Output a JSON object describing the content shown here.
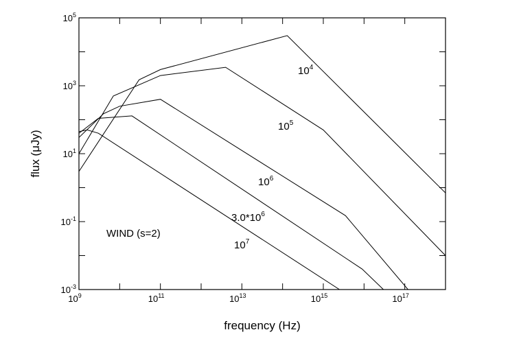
{
  "chart_data": {
    "type": "line",
    "xscale": "log",
    "yscale": "log",
    "xlabel": "frequency (Hz)",
    "ylabel": "flux (μJy)",
    "xlim": [
      1000000000.0,
      1e+18
    ],
    "ylim": [
      0.001,
      100000
    ],
    "grid": false,
    "x_ticks": [
      {
        "base": "10",
        "exp": "9",
        "value": 1000000000.0
      },
      {
        "base": "10",
        "exp": "11",
        "value": 100000000000.0
      },
      {
        "base": "10",
        "exp": "13",
        "value": 10000000000000.0
      },
      {
        "base": "10",
        "exp": "15",
        "value": 1000000000000000.0
      },
      {
        "base": "10",
        "exp": "17",
        "value": 1e+17
      }
    ],
    "y_ticks": [
      {
        "base": "10",
        "exp": "-3",
        "value": 0.001
      },
      {
        "base": "10",
        "exp": "-1",
        "value": 0.1
      },
      {
        "base": "10",
        "exp": "1",
        "value": 10
      },
      {
        "base": "10",
        "exp": "3",
        "value": 1000
      },
      {
        "base": "10",
        "exp": "5",
        "value": 100000
      }
    ],
    "annotations": [
      {
        "text": "WIND (s=2)"
      }
    ],
    "series": [
      {
        "label_base": "10",
        "label_exp": "4",
        "points": [
          [
            1000000000.0,
            3.0
          ],
          [
            30000000000.0,
            1500
          ],
          [
            100000000000.0,
            3000
          ],
          [
            130000000000000.0,
            30000
          ],
          [
            1e+18,
            0.7
          ]
        ]
      },
      {
        "label_base": "10",
        "label_exp": "5",
        "points": [
          [
            1000000000.0,
            10
          ],
          [
            7000000000.0,
            500
          ],
          [
            100000000000.0,
            2000
          ],
          [
            4000000000000.0,
            3500
          ],
          [
            1000000000000000.0,
            50
          ],
          [
            1e+18,
            0.01
          ]
        ]
      },
      {
        "label_base": "10",
        "label_exp": "6",
        "points": [
          [
            1000000000.0,
            30
          ],
          [
            4000000000.0,
            150
          ],
          [
            10000000000.0,
            250
          ],
          [
            100000000000.0,
            400
          ],
          [
            3500000000000000.0,
            0.15
          ],
          [
            1.2e+17,
            0.001
          ]
        ]
      },
      {
        "label_base": "3.0*10",
        "label_exp": "6",
        "points": [
          [
            1000000000.0,
            40
          ],
          [
            3000000000.0,
            110
          ],
          [
            20000000000.0,
            130
          ],
          [
            9000000000000000.0,
            0.004
          ],
          [
            3e+16,
            0.001
          ]
        ]
      },
      {
        "label_base": "10",
        "label_exp": "7",
        "points": [
          [
            1000000000.0,
            45
          ],
          [
            1600000000.0,
            50
          ],
          [
            3000000000.0,
            40
          ],
          [
            2500000000000000.0,
            0.001
          ]
        ]
      }
    ]
  }
}
